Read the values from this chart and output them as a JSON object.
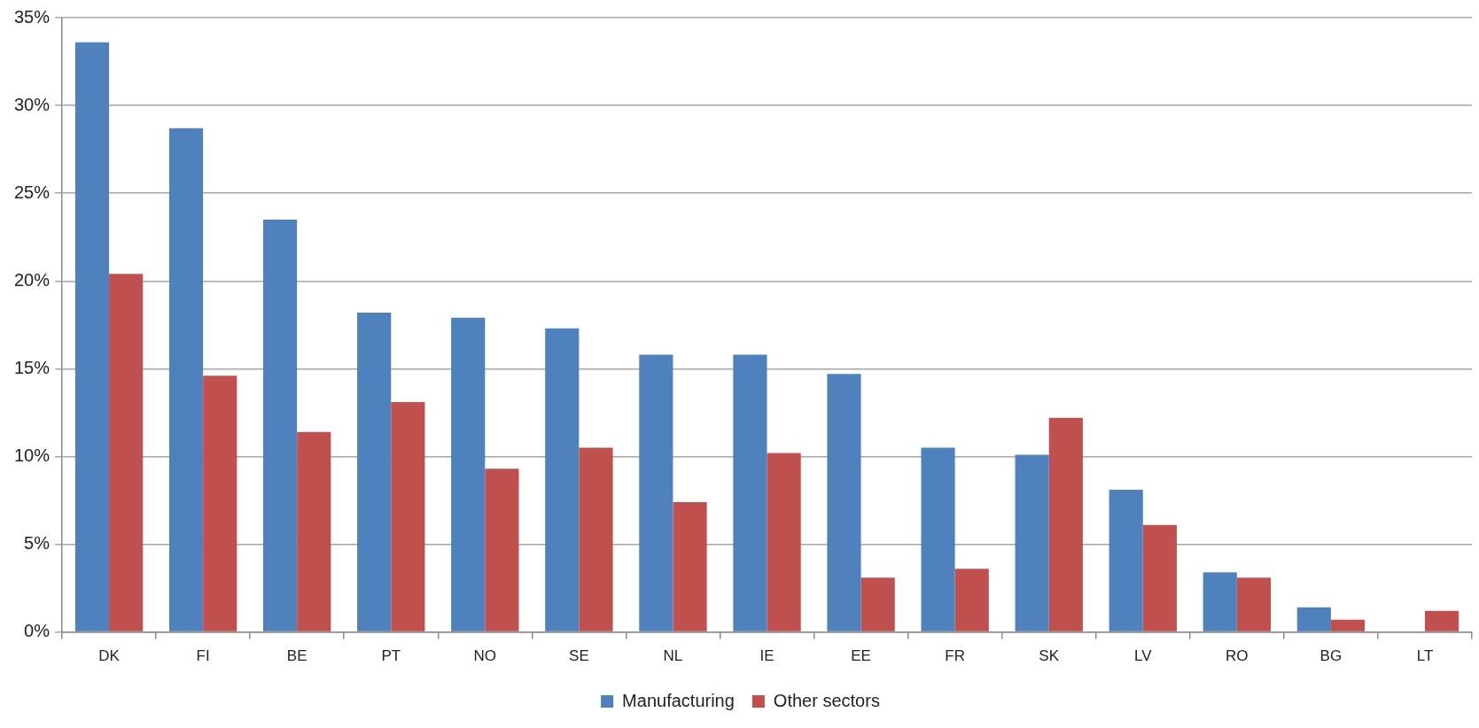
{
  "chart_data": {
    "type": "bar",
    "categories": [
      "DK",
      "FI",
      "BE",
      "PT",
      "NO",
      "SE",
      "NL",
      "IE",
      "EE",
      "FR",
      "SK",
      "LV",
      "RO",
      "BG",
      "LT"
    ],
    "series": [
      {
        "name": "Manufacturing",
        "color": "#4f81bd",
        "values": [
          33.6,
          28.7,
          23.5,
          18.2,
          17.9,
          17.3,
          15.8,
          15.8,
          14.7,
          10.5,
          10.1,
          8.1,
          3.4,
          1.4,
          0
        ]
      },
      {
        "name": "Other sectors",
        "color": "#c0504d",
        "values": [
          20.4,
          14.6,
          11.4,
          13.1,
          9.3,
          10.5,
          7.4,
          10.2,
          3.1,
          3.6,
          12.2,
          6.1,
          3.1,
          0.7,
          1.2
        ]
      }
    ],
    "ylim": [
      0,
      35
    ],
    "yticks": [
      {
        "value": 0,
        "label": "0%"
      },
      {
        "value": 5,
        "label": "5%"
      },
      {
        "value": 10,
        "label": "10%"
      },
      {
        "value": 15,
        "label": "15%"
      },
      {
        "value": 20,
        "label": "20%"
      },
      {
        "value": 25,
        "label": "25%"
      },
      {
        "value": 30,
        "label": "30%"
      },
      {
        "value": 35,
        "label": "35%"
      }
    ],
    "grid": "y",
    "legend": "bottom"
  }
}
